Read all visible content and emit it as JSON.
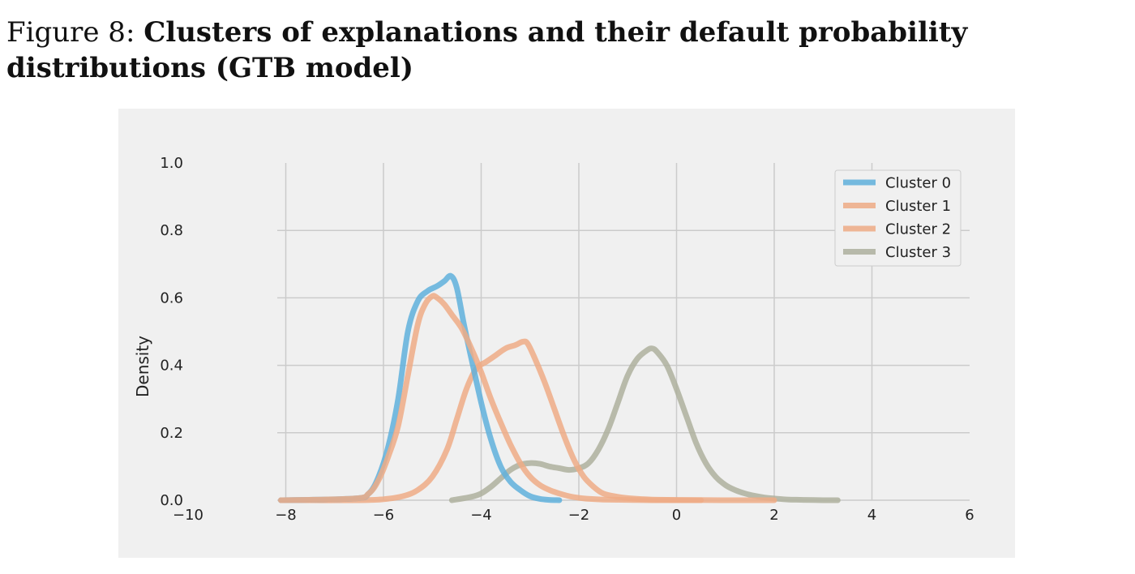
{
  "caption": {
    "label": "Figure 8:",
    "title": "Clusters of explanations and their default probability distributions (GTB model)"
  },
  "chart_data": {
    "type": "line",
    "title": "",
    "xlabel": "",
    "ylabel": "Density",
    "xlim": [
      -10,
      6
    ],
    "ylim": [
      0,
      1.0
    ],
    "xticks": [
      -10,
      -8,
      -6,
      -4,
      -2,
      0,
      2,
      4,
      6
    ],
    "yticks": [
      0.0,
      0.2,
      0.4,
      0.6,
      0.8,
      1.0
    ],
    "xtick_labels": [
      "−10",
      "−8",
      "−6",
      "−4",
      "−2",
      "0",
      "2",
      "4",
      "6"
    ],
    "ytick_labels": [
      "0.0",
      "0.2",
      "0.4",
      "0.6",
      "0.8",
      "1.0"
    ],
    "grid": true,
    "legend_position": "top-right",
    "series": [
      {
        "name": "Cluster 0",
        "color": "#5fb0dc",
        "x": [
          -8.1,
          -6.6,
          -6.3,
          -6.1,
          -5.9,
          -5.7,
          -5.5,
          -5.3,
          -5.1,
          -4.9,
          -4.75,
          -4.62,
          -4.5,
          -4.35,
          -4.2,
          -4.0,
          -3.8,
          -3.6,
          -3.4,
          -3.2,
          -3.0,
          -2.8,
          -2.6,
          -2.4
        ],
        "y": [
          0.0,
          0.005,
          0.02,
          0.07,
          0.16,
          0.3,
          0.5,
          0.59,
          0.62,
          0.635,
          0.65,
          0.665,
          0.63,
          0.52,
          0.42,
          0.29,
          0.18,
          0.1,
          0.055,
          0.03,
          0.012,
          0.004,
          0.001,
          0.0
        ]
      },
      {
        "name": "Cluster 1",
        "color": "#eeab86",
        "x": [
          -8.1,
          -6.6,
          -6.3,
          -6.1,
          -5.9,
          -5.7,
          -5.5,
          -5.3,
          -5.15,
          -5.0,
          -4.9,
          -4.75,
          -4.6,
          -4.4,
          -4.2,
          -4.0,
          -3.8,
          -3.6,
          -3.4,
          -3.2,
          -3.0,
          -2.8,
          -2.6,
          -2.4,
          -2.2,
          -2.0,
          -1.8,
          -1.5,
          -1.0,
          -0.5,
          0.5
        ],
        "y": [
          0.0,
          0.005,
          0.02,
          0.06,
          0.13,
          0.22,
          0.37,
          0.52,
          0.58,
          0.605,
          0.6,
          0.58,
          0.55,
          0.51,
          0.45,
          0.38,
          0.3,
          0.23,
          0.165,
          0.11,
          0.07,
          0.045,
          0.03,
          0.02,
          0.012,
          0.007,
          0.004,
          0.002,
          0.001,
          0.0,
          0.0
        ]
      },
      {
        "name": "Cluster 2",
        "color": "#eeab86",
        "x": [
          -8.1,
          -6.5,
          -6.0,
          -5.6,
          -5.3,
          -5.0,
          -4.7,
          -4.5,
          -4.3,
          -4.1,
          -3.9,
          -3.7,
          -3.5,
          -3.3,
          -3.15,
          -3.05,
          -2.9,
          -2.7,
          -2.5,
          -2.3,
          -2.1,
          -1.9,
          -1.7,
          -1.5,
          -1.2,
          -0.9,
          -0.5,
          0.0,
          1.0,
          2.0
        ],
        "y": [
          0.0,
          0.0,
          0.003,
          0.012,
          0.03,
          0.07,
          0.15,
          0.24,
          0.33,
          0.39,
          0.41,
          0.43,
          0.45,
          0.46,
          0.47,
          0.465,
          0.42,
          0.35,
          0.27,
          0.19,
          0.12,
          0.07,
          0.04,
          0.02,
          0.01,
          0.005,
          0.002,
          0.001,
          0.0,
          0.0
        ]
      },
      {
        "name": "Cluster 3",
        "color": "#aeb09e",
        "x": [
          -4.6,
          -4.2,
          -4.0,
          -3.8,
          -3.6,
          -3.4,
          -3.2,
          -3.0,
          -2.8,
          -2.6,
          -2.4,
          -2.2,
          -2.0,
          -1.8,
          -1.6,
          -1.4,
          -1.2,
          -1.0,
          -0.8,
          -0.6,
          -0.5,
          -0.4,
          -0.2,
          0.0,
          0.2,
          0.4,
          0.6,
          0.8,
          1.0,
          1.2,
          1.4,
          1.6,
          1.8,
          2.0,
          2.3,
          2.6,
          3.0,
          3.3
        ],
        "y": [
          0.0,
          0.01,
          0.02,
          0.04,
          0.065,
          0.09,
          0.105,
          0.11,
          0.108,
          0.1,
          0.095,
          0.09,
          0.095,
          0.11,
          0.15,
          0.21,
          0.29,
          0.37,
          0.42,
          0.445,
          0.45,
          0.44,
          0.4,
          0.33,
          0.25,
          0.17,
          0.11,
          0.07,
          0.045,
          0.03,
          0.02,
          0.013,
          0.008,
          0.005,
          0.002,
          0.001,
          0.0,
          0.0
        ]
      }
    ]
  }
}
